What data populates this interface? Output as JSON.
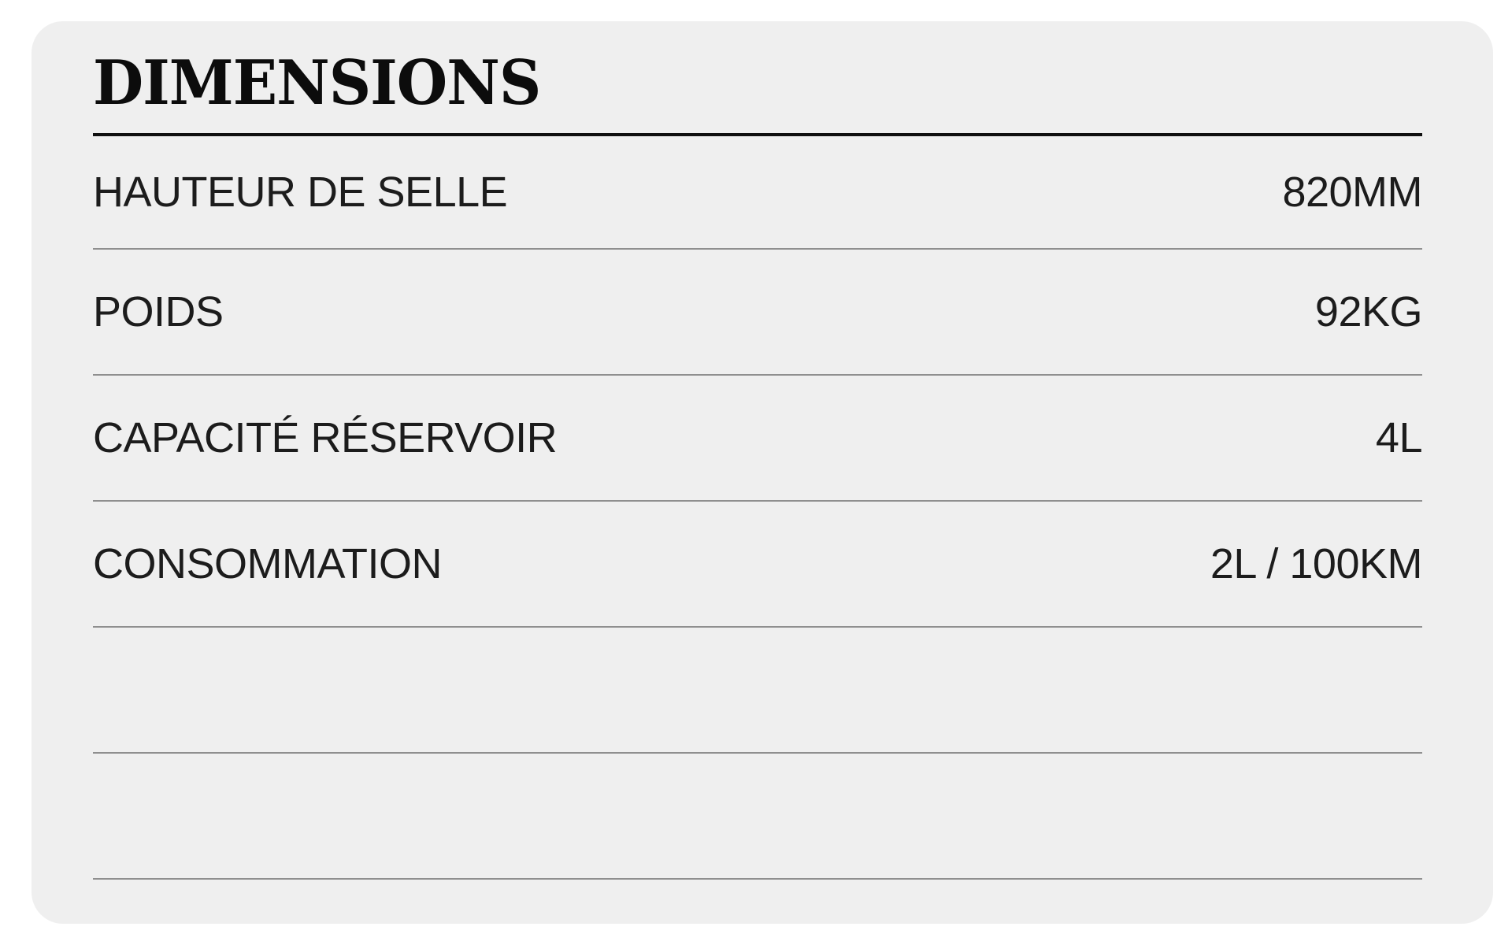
{
  "card": {
    "title": "DIMENSIONS",
    "rows": [
      {
        "label": "HAUTEUR DE SELLE",
        "value": "820MM"
      },
      {
        "label": "POIDS",
        "value": "92KG"
      },
      {
        "label": "CAPACITÉ RÉSERVOIR",
        "value": "4L"
      },
      {
        "label": "CONSOMMATION",
        "value": "2L / 100KM"
      },
      {
        "label": "",
        "value": ""
      },
      {
        "label": "",
        "value": ""
      }
    ],
    "colors": {
      "page_background": "#ffffff",
      "card_background": "#efefef",
      "title_text": "#0c0c0c",
      "title_rule": "#101010",
      "row_divider": "#8f8f8f",
      "row_text": "#1c1c1c"
    }
  }
}
